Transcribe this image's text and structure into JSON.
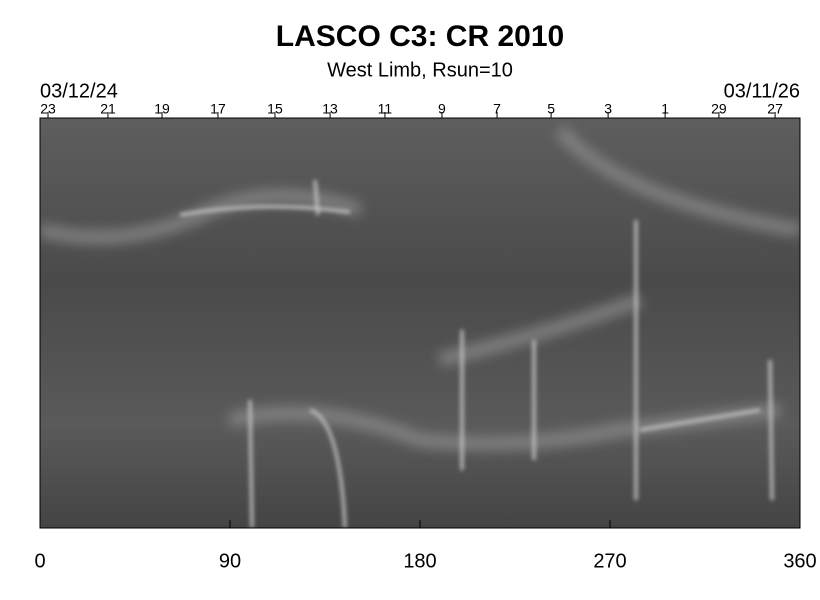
{
  "chart_data": {
    "type": "synoptic-map",
    "title": "LASCO C3: CR 2010",
    "subtitle": "West Limb, Rsun=10",
    "start_date": "03/12/24",
    "end_date": "03/11/26",
    "xlim": [
      0,
      360
    ],
    "xticks": [
      0,
      90,
      180,
      270,
      360
    ],
    "top_ticks": [
      {
        "value": 3.8,
        "label": "23"
      },
      {
        "value": 32.2,
        "label": "21"
      },
      {
        "value": 57.8,
        "label": "19"
      },
      {
        "value": 84.3,
        "label": "17"
      },
      {
        "value": 111.3,
        "label": "15"
      },
      {
        "value": 137.4,
        "label": "13"
      },
      {
        "value": 163.4,
        "label": "11"
      },
      {
        "value": 190.4,
        "label": "9"
      },
      {
        "value": 216.5,
        "label": "7"
      },
      {
        "value": 242.1,
        "label": "5"
      },
      {
        "value": 269.1,
        "label": "3"
      },
      {
        "value": 296.1,
        "label": "1"
      },
      {
        "value": 321.6,
        "label": "29"
      },
      {
        "value": 348.2,
        "label": "27"
      }
    ],
    "colormap": "gray"
  }
}
